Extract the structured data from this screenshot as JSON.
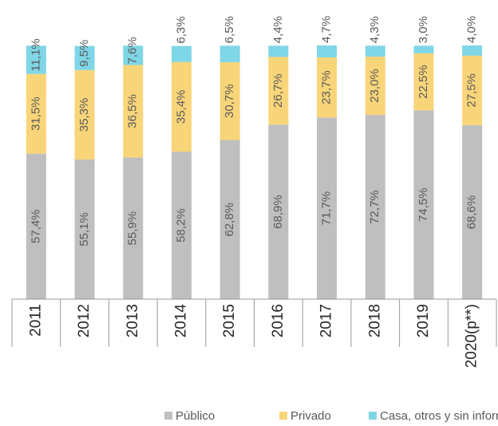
{
  "chart_data": {
    "type": "stacked_bar",
    "categories": [
      "2011",
      "2012",
      "2013",
      "2014",
      "2015",
      "2016",
      "2017",
      "2018",
      "2019",
      "2020(p**)"
    ],
    "series": [
      {
        "name": "Público",
        "color": "#bfbfbf",
        "values": [
          57.4,
          55.1,
          55.9,
          58.2,
          62.8,
          68.9,
          71.7,
          72.7,
          74.5,
          68.6
        ],
        "value_labels": [
          "57,4%",
          "55,1%",
          "55,9%",
          "58,2%",
          "62,8%",
          "68,9%",
          "71,7%",
          "72,7%",
          "74,5%",
          "68,6%"
        ]
      },
      {
        "name": "Privado",
        "color": "#f9d57a",
        "values": [
          31.5,
          35.3,
          36.5,
          35.4,
          30.7,
          26.7,
          23.7,
          23.0,
          22.5,
          27.5
        ],
        "value_labels": [
          "31,5%",
          "35,3%",
          "36,5%",
          "35,4%",
          "30,7%",
          "26,7%",
          "23,7%",
          "23,0%",
          "22,5%",
          "27,5%"
        ]
      },
      {
        "name": "Casa, otros y sin información",
        "color": "#7fd6e6",
        "values": [
          11.1,
          9.5,
          7.6,
          6.3,
          6.5,
          4.4,
          4.7,
          4.3,
          3.0,
          4.0
        ],
        "value_labels": [
          "11,1%",
          "9,5%",
          "7,6%",
          "6,3%",
          "6,5%",
          "4,4%",
          "4,7%",
          "4,3%",
          "3,0%",
          "4,0%"
        ]
      }
    ],
    "legend": "bottom"
  }
}
